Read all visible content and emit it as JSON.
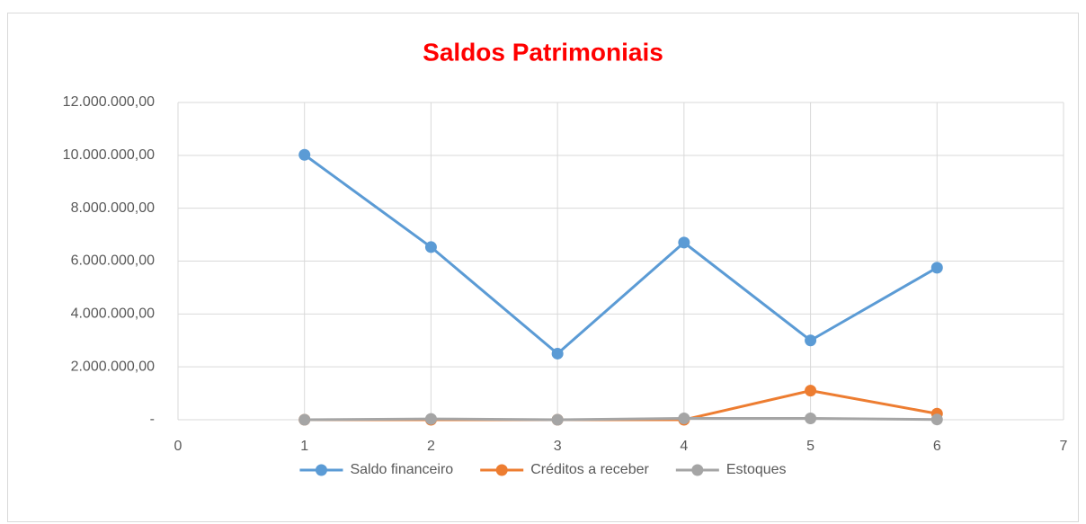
{
  "chart_data": {
    "type": "line",
    "title": "Saldos Patrimoniais",
    "title_color": "#ff0000",
    "x": [
      1,
      2,
      3,
      4,
      5,
      6
    ],
    "series": [
      {
        "name": "Saldo financeiro",
        "color": "#5b9bd5",
        "values": [
          10020000,
          6530000,
          2500000,
          6700000,
          3000000,
          5750000
        ]
      },
      {
        "name": "Créditos a receber",
        "color": "#ed7d31",
        "values": [
          0,
          0,
          0,
          0,
          1100000,
          230000
        ]
      },
      {
        "name": "Estoques",
        "color": "#a5a5a5",
        "values": [
          0,
          30000,
          0,
          50000,
          50000,
          10000
        ]
      }
    ],
    "xlim": [
      0,
      7
    ],
    "xticks": [
      0,
      1,
      2,
      3,
      4,
      5,
      6,
      7
    ],
    "ylim": [
      0,
      12000000
    ],
    "yticks": [
      {
        "value": 0,
        "label": "-"
      },
      {
        "value": 2000000,
        "label": "2.000.000,00"
      },
      {
        "value": 4000000,
        "label": "4.000.000,00"
      },
      {
        "value": 6000000,
        "label": "6.000.000,00"
      },
      {
        "value": 8000000,
        "label": "8.000.000,00"
      },
      {
        "value": 10000000,
        "label": "10.000.000,00"
      },
      {
        "value": 12000000,
        "label": "12.000.000,00"
      }
    ],
    "grid": true,
    "legend": "bottom"
  }
}
